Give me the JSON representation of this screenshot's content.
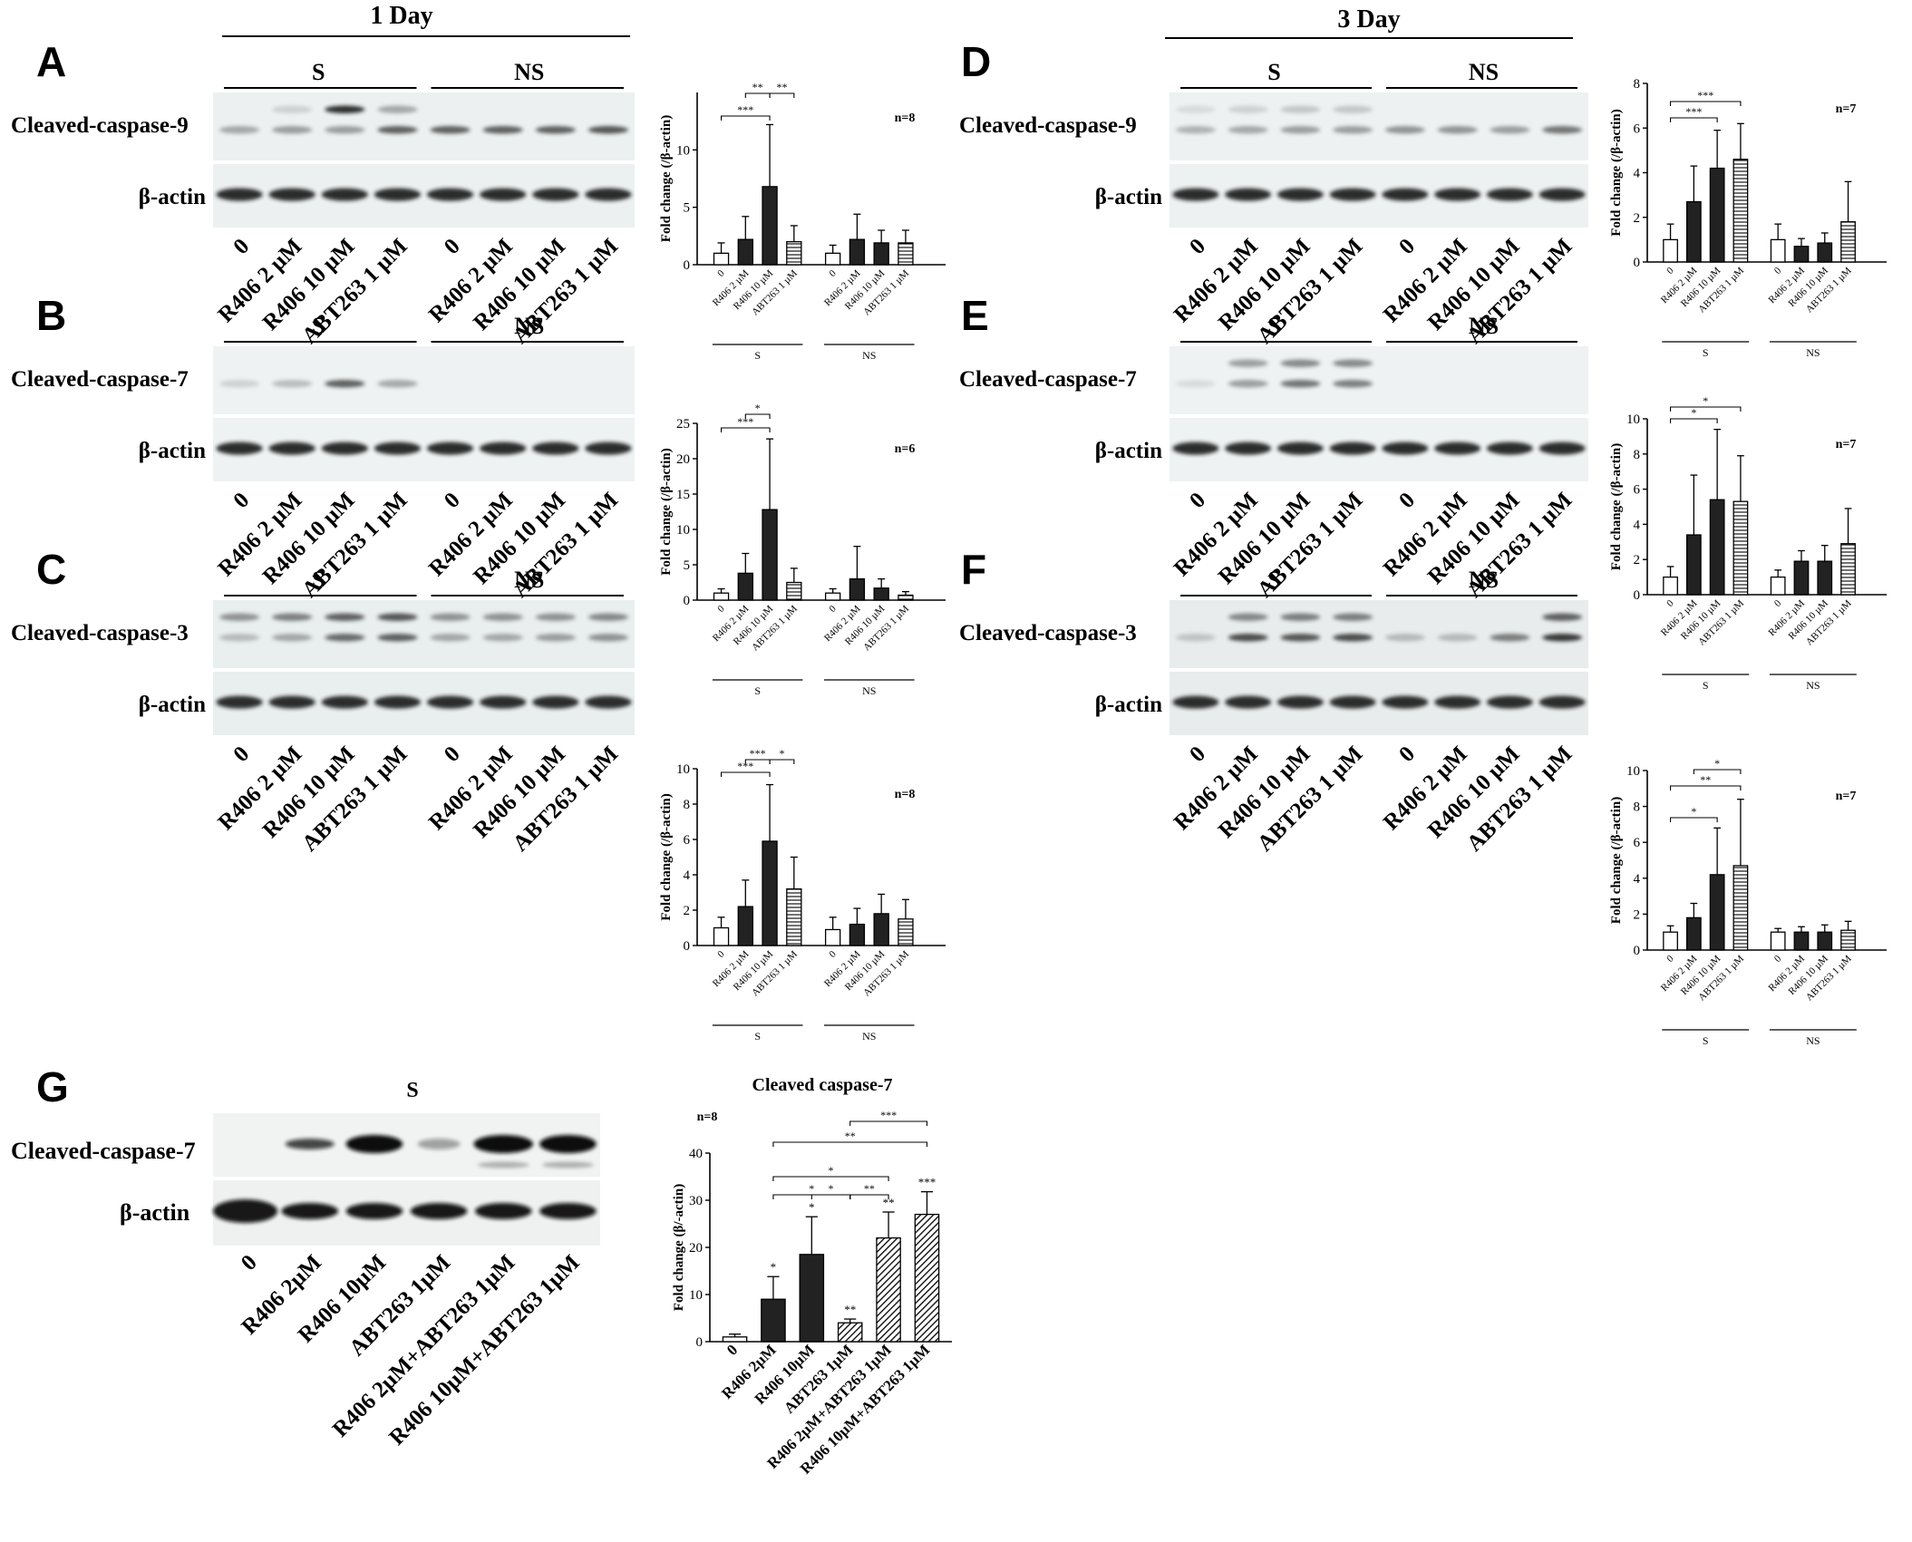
{
  "header": {
    "left_title": "1 Day",
    "right_title": "3 Day"
  },
  "common": {
    "group_s": "S",
    "group_ns": "NS",
    "lanes4": [
      "0",
      "R406 2 µM",
      "R406 10 µM",
      "ABT263 1 µM"
    ],
    "ylabel": "Fold change (/β-actin)",
    "ref_band": "β-actin"
  },
  "panels": [
    {
      "id": "A",
      "letter": "A",
      "protein": "Cleaved-caspase-9",
      "n": "n=8",
      "bg": "#ecf0f0"
    },
    {
      "id": "B",
      "letter": "B",
      "protein": "Cleaved-caspase-7",
      "n": "n=6",
      "bg": "#eef2f2"
    },
    {
      "id": "C",
      "letter": "C",
      "protein": "Cleaved-caspase-3",
      "n": "n=8",
      "bg": "#e9eeef"
    },
    {
      "id": "D",
      "letter": "D",
      "protein": "Cleaved-caspase-9",
      "n": "n=7",
      "bg": "#edf1f1"
    },
    {
      "id": "E",
      "letter": "E",
      "protein": "Cleaved-caspase-7",
      "n": "n=7",
      "bg": "#eef2f2"
    },
    {
      "id": "F",
      "letter": "F",
      "protein": "Cleaved-caspase-3",
      "n": "n=7",
      "bg": "#e8ecec"
    }
  ],
  "panel_g": {
    "letter": "G",
    "group": "S",
    "protein": "Cleaved-caspase-7",
    "ref_band": "β-actin",
    "title": "Cleaved caspase-7",
    "n": "n=8",
    "ylabel": "Fold change (β/-actin)",
    "lanes": [
      "0",
      "R406 2µM",
      "R406 10µM",
      "ABT263 1µM",
      "R406 2µM+ABT263 1µM",
      "R406 10µM+ABT263 1µM"
    ]
  },
  "chart_data": [
    {
      "panel": "A",
      "type": "bar",
      "ylabel": "Fold change (/β-actin)",
      "ylim": [
        0,
        15
      ],
      "yticks": [
        0,
        5,
        10
      ],
      "groups": [
        "S",
        "NS"
      ],
      "categories": [
        "0",
        "R406 2 µM",
        "R406 10 µM",
        "ABT263 1 µM",
        "0",
        "R406 2 µM",
        "R406 10 µM",
        "ABT263 1 µM"
      ],
      "values": [
        1.0,
        2.2,
        6.8,
        2.0,
        1.0,
        2.2,
        1.9,
        1.9
      ],
      "errors": [
        0.9,
        2.0,
        5.4,
        1.4,
        0.7,
        2.2,
        1.1,
        1.1
      ],
      "fills": [
        "white",
        "black",
        "black",
        "hstripe",
        "white",
        "black",
        "black",
        "hstripe"
      ],
      "significance": [
        {
          "from": 0,
          "to": 2,
          "label": "***"
        },
        {
          "from": 1,
          "to": 2,
          "label": "**"
        },
        {
          "from": 2,
          "to": 3,
          "label": "**"
        }
      ]
    },
    {
      "panel": "B",
      "type": "bar",
      "ylabel": "Fold change (/β-actin)",
      "ylim": [
        0,
        25
      ],
      "yticks": [
        0,
        5,
        10,
        15,
        20,
        25
      ],
      "groups": [
        "S",
        "NS"
      ],
      "categories": [
        "0",
        "R406 2 µM",
        "R406 10 µM",
        "ABT263 1 µM",
        "0",
        "R406 2 µM",
        "R406 10 µM",
        "ABT263 1 µM"
      ],
      "values": [
        1.0,
        3.8,
        12.8,
        2.5,
        1.0,
        3.0,
        1.7,
        0.7
      ],
      "errors": [
        0.6,
        2.8,
        10.0,
        2.0,
        0.6,
        4.6,
        1.3,
        0.5
      ],
      "fills": [
        "white",
        "black",
        "black",
        "hstripe",
        "white",
        "black",
        "black",
        "hstripe"
      ],
      "significance": [
        {
          "from": 0,
          "to": 2,
          "label": "***"
        },
        {
          "from": 1,
          "to": 2,
          "label": "*"
        }
      ]
    },
    {
      "panel": "C",
      "type": "bar",
      "ylabel": "Fold change (/β-actin)",
      "ylim": [
        0,
        10
      ],
      "yticks": [
        0,
        2,
        4,
        6,
        8,
        10
      ],
      "groups": [
        "S",
        "NS"
      ],
      "categories": [
        "0",
        "R406 2 µM",
        "R406 10 µM",
        "ABT263 1 µM",
        "0",
        "R406 2 µM",
        "R406 10 µM",
        "ABT263 1 µM"
      ],
      "values": [
        1.0,
        2.2,
        5.9,
        3.2,
        0.9,
        1.2,
        1.8,
        1.5
      ],
      "errors": [
        0.6,
        1.5,
        3.2,
        1.8,
        0.7,
        0.9,
        1.1,
        1.1
      ],
      "fills": [
        "white",
        "black",
        "black",
        "hstripe",
        "white",
        "black",
        "black",
        "hstripe"
      ],
      "significance": [
        {
          "from": 0,
          "to": 2,
          "label": "***"
        },
        {
          "from": 1,
          "to": 2,
          "label": "***"
        },
        {
          "from": 2,
          "to": 3,
          "label": "*"
        }
      ]
    },
    {
      "panel": "D",
      "type": "bar",
      "ylabel": "Fold change (/β-actin)",
      "ylim": [
        0,
        8
      ],
      "yticks": [
        0,
        2,
        4,
        6,
        8
      ],
      "groups": [
        "S",
        "NS"
      ],
      "categories": [
        "0",
        "R406 2 µM",
        "R406 10 µM",
        "ABT263 1 µM",
        "0",
        "R406 2 µM",
        "R406 10 µM",
        "ABT263 1 µM"
      ],
      "values": [
        1.0,
        2.7,
        4.2,
        4.6,
        1.0,
        0.7,
        0.85,
        1.8
      ],
      "errors": [
        0.7,
        1.6,
        1.7,
        1.6,
        0.7,
        0.35,
        0.45,
        1.8
      ],
      "fills": [
        "white",
        "black",
        "black",
        "hstripe",
        "white",
        "black",
        "black",
        "hstripe"
      ],
      "significance": [
        {
          "from": 0,
          "to": 2,
          "label": "***"
        },
        {
          "from": 0,
          "to": 3,
          "label": "***"
        }
      ]
    },
    {
      "panel": "E",
      "type": "bar",
      "ylabel": "Fold change (/β-actin)",
      "ylim": [
        0,
        10
      ],
      "yticks": [
        0,
        2,
        4,
        6,
        8,
        10
      ],
      "groups": [
        "S",
        "NS"
      ],
      "categories": [
        "0",
        "R406 2 µM",
        "R406 10 µM",
        "ABT263 1 µM",
        "0",
        "R406 2 µM",
        "R406 10 µM",
        "ABT263 1 µM"
      ],
      "values": [
        1.0,
        3.4,
        5.4,
        5.3,
        1.0,
        1.9,
        1.9,
        2.9
      ],
      "errors": [
        0.6,
        3.4,
        4.0,
        2.6,
        0.4,
        0.6,
        0.9,
        2.0
      ],
      "fills": [
        "white",
        "black",
        "black",
        "hstripe",
        "white",
        "black",
        "black",
        "hstripe"
      ],
      "significance": [
        {
          "from": 0,
          "to": 2,
          "label": "*"
        },
        {
          "from": 0,
          "to": 3,
          "label": "*"
        }
      ]
    },
    {
      "panel": "F",
      "type": "bar",
      "ylabel": "Fold change (/β-actin)",
      "ylim": [
        0,
        10
      ],
      "yticks": [
        0,
        2,
        4,
        6,
        8,
        10
      ],
      "groups": [
        "S",
        "NS"
      ],
      "categories": [
        "0",
        "R406 2 µM",
        "R406 10 µM",
        "ABT263 1 µM",
        "0",
        "R406 2 µM",
        "R406 10 µM",
        "ABT263 1 µM"
      ],
      "values": [
        1.0,
        1.8,
        4.2,
        4.7,
        1.0,
        1.0,
        1.0,
        1.1
      ],
      "errors": [
        0.35,
        0.8,
        2.6,
        3.7,
        0.2,
        0.3,
        0.4,
        0.5
      ],
      "fills": [
        "white",
        "black",
        "black",
        "hstripe",
        "white",
        "black",
        "black",
        "hstripe"
      ],
      "significance": [
        {
          "from": 0,
          "to": 2,
          "label": "*"
        },
        {
          "from": 0,
          "to": 3,
          "label": "**"
        },
        {
          "from": 1,
          "to": 3,
          "label": "*"
        }
      ]
    },
    {
      "panel": "G",
      "type": "bar",
      "title": "Cleaved caspase-7",
      "ylabel": "Fold change (β/-actin)",
      "ylim": [
        0,
        40
      ],
      "yticks": [
        0,
        10,
        20,
        30,
        40
      ],
      "categories": [
        "0",
        "R406 2µM",
        "R406 10µM",
        "ABT263 1µM",
        "R406 2µM+ABT263 1µM",
        "R406 10µM+ABT263 1µM"
      ],
      "values": [
        1.0,
        9.0,
        18.5,
        4.0,
        22.0,
        27.0
      ],
      "errors": [
        0.6,
        4.8,
        8.0,
        0.8,
        5.5,
        4.8
      ],
      "fills": [
        "white",
        "black",
        "black",
        "diag",
        "diag",
        "diag"
      ],
      "bar_marks": [
        "",
        "*",
        "*",
        "**",
        "**",
        "***"
      ],
      "significance": [
        {
          "from": 1,
          "to": 3,
          "label": "*",
          "level": 0
        },
        {
          "from": 2,
          "to": 3,
          "label": "*",
          "level": 0
        },
        {
          "from": 3,
          "to": 4,
          "label": "**",
          "level": 0
        },
        {
          "from": 1,
          "to": 4,
          "label": "*",
          "level": 1
        },
        {
          "from": 1,
          "to": 5,
          "label": "**",
          "level": 2
        },
        {
          "from": 3,
          "to": 5,
          "label": "***",
          "level": 3
        }
      ]
    }
  ]
}
